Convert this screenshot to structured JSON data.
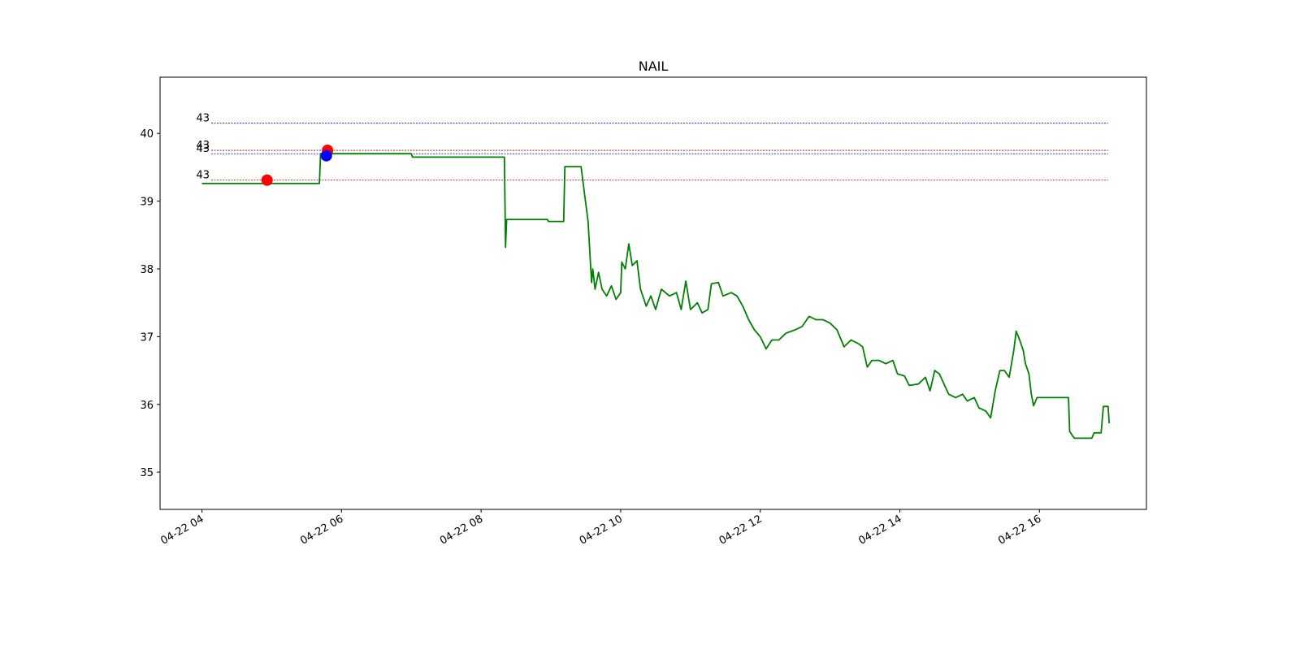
{
  "chart_data": {
    "type": "line",
    "title": "NAIL",
    "xlabel": "",
    "ylabel": "",
    "ylim": [
      34.45,
      40.83
    ],
    "xlim": [
      "2024-04-22 03:24",
      "2024-04-22 17:32"
    ],
    "yticks": [
      35,
      36,
      37,
      38,
      39,
      40
    ],
    "xticks": [
      {
        "t": "2024-04-22 04:00",
        "label": "04-22 04"
      },
      {
        "t": "2024-04-22 06:00",
        "label": "04-22 06"
      },
      {
        "t": "2024-04-22 08:00",
        "label": "04-22 08"
      },
      {
        "t": "2024-04-22 10:00",
        "label": "04-22 10"
      },
      {
        "t": "2024-04-22 12:00",
        "label": "04-22 12"
      },
      {
        "t": "2024-04-22 14:00",
        "label": "04-22 14"
      },
      {
        "t": "2024-04-22 16:00",
        "label": "04-22 16"
      }
    ],
    "grid": false,
    "series": [
      {
        "color": "#008000",
        "points": [
          [
            "2024-04-22 04:00",
            39.26
          ],
          [
            "2024-04-22 05:41",
            39.26
          ],
          [
            "2024-04-22 05:42",
            39.7
          ],
          [
            "2024-04-22 07:00",
            39.7
          ],
          [
            "2024-04-22 07:01",
            39.65
          ],
          [
            "2024-04-22 08:20",
            39.65
          ],
          [
            "2024-04-22 08:21",
            38.32
          ],
          [
            "2024-04-22 08:22",
            38.73
          ],
          [
            "2024-04-22 08:57",
            38.73
          ],
          [
            "2024-04-22 08:58",
            38.7
          ],
          [
            "2024-04-22 09:11",
            38.7
          ],
          [
            "2024-04-22 09:12",
            39.51
          ],
          [
            "2024-04-22 09:26",
            39.51
          ],
          [
            "2024-04-22 09:29",
            39.1
          ],
          [
            "2024-04-22 09:32",
            38.7
          ],
          [
            "2024-04-22 09:35",
            37.8
          ],
          [
            "2024-04-22 09:36",
            38.0
          ],
          [
            "2024-04-22 09:38",
            37.7
          ],
          [
            "2024-04-22 09:41",
            37.95
          ],
          [
            "2024-04-22 09:44",
            37.7
          ],
          [
            "2024-04-22 09:48",
            37.6
          ],
          [
            "2024-04-22 09:52",
            37.75
          ],
          [
            "2024-04-22 09:56",
            37.55
          ],
          [
            "2024-04-22 10:00",
            37.65
          ],
          [
            "2024-04-22 10:01",
            38.1
          ],
          [
            "2024-04-22 10:04",
            38.0
          ],
          [
            "2024-04-22 10:07",
            38.37
          ],
          [
            "2024-04-22 10:10",
            38.05
          ],
          [
            "2024-04-22 10:14",
            38.12
          ],
          [
            "2024-04-22 10:17",
            37.7
          ],
          [
            "2024-04-22 10:22",
            37.45
          ],
          [
            "2024-04-22 10:26",
            37.6
          ],
          [
            "2024-04-22 10:30",
            37.4
          ],
          [
            "2024-04-22 10:35",
            37.7
          ],
          [
            "2024-04-22 10:42",
            37.6
          ],
          [
            "2024-04-22 10:48",
            37.65
          ],
          [
            "2024-04-22 10:52",
            37.4
          ],
          [
            "2024-04-22 10:56",
            37.82
          ],
          [
            "2024-04-22 11:00",
            37.4
          ],
          [
            "2024-04-22 11:06",
            37.5
          ],
          [
            "2024-04-22 11:10",
            37.35
          ],
          [
            "2024-04-22 11:15",
            37.4
          ],
          [
            "2024-04-22 11:18",
            37.78
          ],
          [
            "2024-04-22 11:24",
            37.8
          ],
          [
            "2024-04-22 11:28",
            37.6
          ],
          [
            "2024-04-22 11:35",
            37.65
          ],
          [
            "2024-04-22 11:40",
            37.6
          ],
          [
            "2024-04-22 11:45",
            37.45
          ],
          [
            "2024-04-22 11:50",
            37.25
          ],
          [
            "2024-04-22 11:55",
            37.1
          ],
          [
            "2024-04-22 12:00",
            37.0
          ],
          [
            "2024-04-22 12:05",
            36.82
          ],
          [
            "2024-04-22 12:10",
            36.95
          ],
          [
            "2024-04-22 12:16",
            36.95
          ],
          [
            "2024-04-22 12:22",
            37.05
          ],
          [
            "2024-04-22 12:30",
            37.1
          ],
          [
            "2024-04-22 12:36",
            37.15
          ],
          [
            "2024-04-22 12:42",
            37.3
          ],
          [
            "2024-04-22 12:48",
            37.25
          ],
          [
            "2024-04-22 12:54",
            37.25
          ],
          [
            "2024-04-22 13:00",
            37.2
          ],
          [
            "2024-04-22 13:06",
            37.1
          ],
          [
            "2024-04-22 13:12",
            36.85
          ],
          [
            "2024-04-22 13:18",
            36.95
          ],
          [
            "2024-04-22 13:24",
            36.9
          ],
          [
            "2024-04-22 13:28",
            36.85
          ],
          [
            "2024-04-22 13:32",
            36.55
          ],
          [
            "2024-04-22 13:36",
            36.65
          ],
          [
            "2024-04-22 13:42",
            36.65
          ],
          [
            "2024-04-22 13:48",
            36.6
          ],
          [
            "2024-04-22 13:54",
            36.65
          ],
          [
            "2024-04-22 13:58",
            36.45
          ],
          [
            "2024-04-22 14:04",
            36.42
          ],
          [
            "2024-04-22 14:08",
            36.28
          ],
          [
            "2024-04-22 14:16",
            36.3
          ],
          [
            "2024-04-22 14:22",
            36.4
          ],
          [
            "2024-04-22 14:26",
            36.2
          ],
          [
            "2024-04-22 14:30",
            36.5
          ],
          [
            "2024-04-22 14:34",
            36.45
          ],
          [
            "2024-04-22 14:38",
            36.3
          ],
          [
            "2024-04-22 14:42",
            36.15
          ],
          [
            "2024-04-22 14:48",
            36.1
          ],
          [
            "2024-04-22 14:54",
            36.15
          ],
          [
            "2024-04-22 14:58",
            36.05
          ],
          [
            "2024-04-22 15:04",
            36.1
          ],
          [
            "2024-04-22 15:08",
            35.95
          ],
          [
            "2024-04-22 15:14",
            35.9
          ],
          [
            "2024-04-22 15:18",
            35.8
          ],
          [
            "2024-04-22 15:22",
            36.2
          ],
          [
            "2024-04-22 15:26",
            36.5
          ],
          [
            "2024-04-22 15:30",
            36.5
          ],
          [
            "2024-04-22 15:34",
            36.4
          ],
          [
            "2024-04-22 15:38",
            36.8
          ],
          [
            "2024-04-22 15:40",
            37.08
          ],
          [
            "2024-04-22 15:43",
            36.95
          ],
          [
            "2024-04-22 15:46",
            36.8
          ],
          [
            "2024-04-22 15:48",
            36.6
          ],
          [
            "2024-04-22 15:51",
            36.45
          ],
          [
            "2024-04-22 15:53",
            36.15
          ],
          [
            "2024-04-22 15:55",
            35.98
          ],
          [
            "2024-04-22 15:58",
            36.1
          ],
          [
            "2024-04-22 16:02",
            36.1
          ],
          [
            "2024-04-22 16:25",
            36.1
          ],
          [
            "2024-04-22 16:26",
            35.6
          ],
          [
            "2024-04-22 16:30",
            35.5
          ],
          [
            "2024-04-22 16:45",
            35.5
          ],
          [
            "2024-04-22 16:47",
            35.58
          ],
          [
            "2024-04-22 16:53",
            35.58
          ],
          [
            "2024-04-22 16:55",
            35.97
          ],
          [
            "2024-04-22 16:59",
            35.97
          ],
          [
            "2024-04-22 17:00",
            35.72
          ]
        ]
      }
    ],
    "markers": [
      {
        "t": "2024-04-22 04:56",
        "y": 39.31,
        "color": "#ff0000"
      },
      {
        "t": "2024-04-22 05:48",
        "y": 39.75,
        "color": "#ff0000"
      },
      {
        "t": "2024-04-22 05:47",
        "y": 39.67,
        "color": "#0000ff"
      }
    ],
    "hlines": [
      {
        "y": 40.15,
        "label": "43",
        "color": "#00008b"
      },
      {
        "y": 39.75,
        "label": "43",
        "color": "#8b0000"
      },
      {
        "y": 39.7,
        "label": "43",
        "color": "#00008b"
      },
      {
        "y": 39.31,
        "label": "43",
        "color": "#8b0000"
      }
    ]
  }
}
